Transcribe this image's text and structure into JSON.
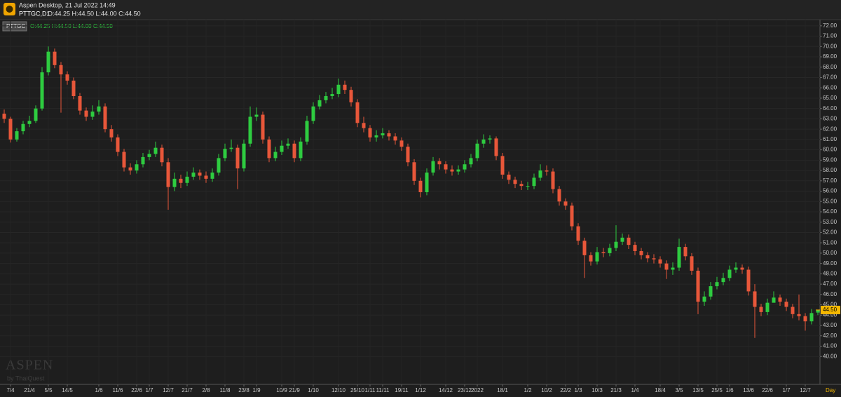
{
  "header": {
    "app": "Aspen Desktop, 21 Jul 2022 14:49",
    "symbol": "PTTGC,D1",
    "ohlc": "O:44.25 H:44.50 L:44.00 C:44.50"
  },
  "chart_data": {
    "type": "candlestick",
    "legend_symbol": "PTTGC",
    "legend_ohlc": "O:44.25 H:44.50 L:44.00 C:44.50",
    "watermark": "ASPEN",
    "watermark_sub": "by ThaiQuest",
    "period_label": "Day",
    "last_price": {
      "value": 44.5,
      "label": "44.50"
    },
    "up_color": "#2ecc40",
    "down_color": "#e8573a",
    "grid": true,
    "ylim": [
      37.3,
      72.6
    ],
    "yticks": [
      {
        "value": 40,
        "label": "40.00"
      },
      {
        "value": 41,
        "label": "41.00"
      },
      {
        "value": 42,
        "label": "42.00"
      },
      {
        "value": 43,
        "label": "43.00"
      },
      {
        "value": 44,
        "label": "44.00"
      },
      {
        "value": 45,
        "label": "45.00"
      },
      {
        "value": 46,
        "label": "46.00"
      },
      {
        "value": 47,
        "label": "47.00"
      },
      {
        "value": 48,
        "label": "48.00"
      },
      {
        "value": 49,
        "label": "49.00"
      },
      {
        "value": 50,
        "label": "50.00"
      },
      {
        "value": 51,
        "label": "51.00"
      },
      {
        "value": 52,
        "label": "52.00"
      },
      {
        "value": 53,
        "label": "53.00"
      },
      {
        "value": 54,
        "label": "54.00"
      },
      {
        "value": 55,
        "label": "55.00"
      },
      {
        "value": 56,
        "label": "56.00"
      },
      {
        "value": 57,
        "label": "57.00"
      },
      {
        "value": 58,
        "label": "58.00"
      },
      {
        "value": 59,
        "label": "59.00"
      },
      {
        "value": 60,
        "label": "60.00"
      },
      {
        "value": 61,
        "label": "61.00"
      },
      {
        "value": 62,
        "label": "62.00"
      },
      {
        "value": 63,
        "label": "63.00"
      },
      {
        "value": 64,
        "label": "64.00"
      },
      {
        "value": 65,
        "label": "65.00"
      },
      {
        "value": 66,
        "label": "66.00"
      },
      {
        "value": 67,
        "label": "67.00"
      },
      {
        "value": 68,
        "label": "68.00"
      },
      {
        "value": 69,
        "label": "69.00"
      },
      {
        "value": 70,
        "label": "70.00"
      },
      {
        "value": 71,
        "label": "71.00"
      },
      {
        "value": 72,
        "label": "72.00"
      }
    ],
    "categories": [
      null,
      "7/4",
      null,
      null,
      "21/4",
      null,
      null,
      "5/5",
      null,
      null,
      "14/5",
      null,
      null,
      null,
      null,
      "1/6",
      null,
      null,
      "11/6",
      null,
      null,
      "22/6",
      null,
      "1/7",
      null,
      null,
      "12/7",
      null,
      null,
      "21/7",
      null,
      null,
      "2/8",
      null,
      null,
      "11/8",
      null,
      null,
      "23/8",
      null,
      "1/9",
      null,
      null,
      null,
      "10/9",
      null,
      "21/9",
      null,
      null,
      "1/10",
      null,
      null,
      null,
      "12/10",
      null,
      null,
      "25/10",
      null,
      "1/11",
      null,
      "11/11",
      null,
      null,
      "19/11",
      null,
      null,
      "1/12",
      null,
      null,
      null,
      "14/12",
      null,
      null,
      "23/12",
      null,
      "2022",
      null,
      null,
      null,
      "18/1",
      null,
      null,
      null,
      "1/2",
      null,
      null,
      "10/2",
      null,
      null,
      "22/2",
      null,
      "1/3",
      null,
      null,
      "10/3",
      null,
      null,
      "21/3",
      null,
      null,
      "1/4",
      null,
      null,
      null,
      "18/4",
      null,
      null,
      "3/5",
      null,
      null,
      "13/5",
      null,
      null,
      "25/5",
      null,
      "1/6",
      null,
      null,
      "13/6",
      null,
      null,
      "22/6",
      null,
      null,
      "1/7",
      null,
      null,
      "12/7",
      null,
      null
    ],
    "open": [
      63.5,
      63,
      61,
      61.8,
      62.5,
      62.8,
      64,
      67.5,
      69.5,
      68.2,
      67.3,
      66.7,
      65.2,
      63.8,
      63.2,
      63.7,
      64.2,
      62,
      61.2,
      59.8,
      58.3,
      58,
      58.6,
      59.3,
      59.6,
      60.2,
      58.8,
      56.4,
      57.2,
      56.8,
      57.4,
      57.8,
      57.5,
      57.2,
      57.8,
      59.2,
      60.1,
      60.2,
      58.2,
      60.6,
      63.2,
      63.4,
      61,
      59.2,
      59.8,
      60.4,
      60.6,
      59.2,
      60.8,
      62.8,
      64.2,
      64.8,
      65.2,
      65.4,
      66.3,
      65.8,
      64.6,
      62.6,
      62.1,
      61.2,
      61.4,
      61.6,
      61.3,
      60.9,
      60.3,
      58.8,
      57,
      55.9,
      57.8,
      58.9,
      58.6,
      58.1,
      57.9,
      58.1,
      58.6,
      59.2,
      60.6,
      61,
      61.1,
      59.4,
      57.6,
      57.1,
      56.7,
      56.5,
      56.5,
      57.3,
      58,
      57.9,
      56.2,
      55,
      54.6,
      52.6,
      51.2,
      49.8,
      49.2,
      50.1,
      50,
      50.5,
      51.1,
      51.5,
      50.8,
      50.2,
      49.8,
      49.5,
      49.4,
      49,
      48.4,
      48.6,
      50.6,
      49.7,
      48.3,
      45.3,
      45.8,
      46.8,
      47.2,
      47.6,
      48.4,
      48.6,
      48.4,
      46.3,
      44.8,
      44.3,
      45.2,
      45.7,
      45.3,
      44.8,
      44.1,
      43.9,
      43.4,
      44.25
    ],
    "high": [
      63.9,
      63.2,
      62.1,
      62.8,
      63.3,
      64.3,
      68,
      70,
      69.8,
      68.5,
      67.6,
      67,
      65.5,
      64.1,
      64.3,
      64.8,
      64.5,
      62.4,
      61.5,
      60.1,
      58.7,
      59,
      59.7,
      60,
      60.8,
      60.5,
      59.2,
      57.8,
      57.6,
      57.9,
      58.3,
      58.1,
      57.9,
      58.2,
      59.6,
      60.6,
      61,
      60.5,
      61,
      64.2,
      64.1,
      63.7,
      61.3,
      60.3,
      60.9,
      61.1,
      60.9,
      61.2,
      63.3,
      64.6,
      65.3,
      65.6,
      66,
      66.9,
      66.7,
      66.1,
      64.9,
      63.2,
      62.4,
      61.9,
      62.1,
      61.9,
      61.6,
      61.2,
      60.6,
      59.1,
      57.3,
      58.2,
      59.3,
      59.2,
      58.9,
      58.5,
      58.5,
      59,
      59.6,
      61,
      61.5,
      61.4,
      61.3,
      59.7,
      57.9,
      57.4,
      57,
      56.9,
      57.7,
      58.6,
      58.5,
      58.2,
      56.5,
      55.3,
      54.9,
      52.9,
      51.5,
      50.1,
      50.6,
      50.5,
      50.9,
      52.7,
      51.9,
      51.8,
      51.1,
      50.5,
      50.1,
      49.9,
      49.7,
      49.3,
      49.1,
      51.4,
      50.9,
      50,
      48.6,
      46.3,
      47.2,
      47.7,
      48.1,
      48.8,
      49.1,
      48.9,
      48.7,
      47,
      45.1,
      45.6,
      46.3,
      46,
      45.6,
      45.1,
      46,
      44.2,
      44.6,
      44.5
    ],
    "low": [
      62.6,
      60.7,
      60.8,
      61.5,
      62.2,
      62.6,
      63.8,
      67.2,
      67.9,
      63.6,
      66.3,
      64.9,
      63.4,
      62.8,
      62.9,
      63.4,
      61.7,
      60.8,
      59.4,
      57.9,
      57.6,
      57.7,
      58.3,
      59,
      59.3,
      58.4,
      54.2,
      56,
      56.3,
      56.5,
      57.1,
      57.1,
      56.8,
      56.9,
      57.5,
      58.9,
      59.8,
      56.2,
      57.9,
      60.3,
      62.8,
      60.6,
      58.8,
      58.9,
      59.5,
      60.1,
      58.8,
      58.9,
      60.5,
      62.5,
      63.9,
      64.5,
      64.9,
      65.1,
      65.4,
      64.2,
      62.2,
      61.7,
      60.8,
      60.8,
      61.1,
      60.9,
      60.5,
      59.9,
      58.4,
      56.6,
      55.4,
      55.6,
      57.5,
      58.1,
      57.7,
      57.5,
      57.6,
      57.8,
      58.3,
      58.9,
      60.2,
      60.6,
      59,
      57.2,
      56.7,
      56.3,
      56.1,
      56.1,
      56.2,
      57,
      57.5,
      55.8,
      54.6,
      54.2,
      52.2,
      50.8,
      47.6,
      48.8,
      48.9,
      49.6,
      49.7,
      50.2,
      50.8,
      50.4,
      49.8,
      49.4,
      49.1,
      49,
      48.6,
      47.5,
      47.9,
      48.3,
      49.3,
      47.9,
      44.1,
      44.9,
      45.5,
      46.5,
      46.9,
      47.3,
      48.1,
      48,
      45.9,
      41.8,
      43.9,
      44,
      45.3,
      44.9,
      44.4,
      43.7,
      43.5,
      42.5,
      43.1,
      44
    ],
    "close": [
      63,
      61,
      61.8,
      62.5,
      62.8,
      64,
      67.5,
      69.5,
      68.2,
      67.3,
      66.7,
      65.2,
      63.8,
      63.2,
      63.7,
      64.2,
      62,
      61.2,
      59.8,
      58.3,
      58,
      58.6,
      59.3,
      59.6,
      60.2,
      58.8,
      56.4,
      57.2,
      56.8,
      57.4,
      57.8,
      57.5,
      57.2,
      57.8,
      59.2,
      60.1,
      60.2,
      58.2,
      60.6,
      63.2,
      63.4,
      61,
      59.2,
      59.8,
      60.4,
      60.6,
      59.2,
      60.8,
      62.8,
      64.2,
      64.8,
      65.2,
      65.4,
      66.3,
      65.8,
      64.6,
      62.6,
      62.1,
      61.2,
      61.4,
      61.6,
      61.3,
      60.9,
      60.3,
      58.8,
      57,
      55.9,
      57.8,
      58.9,
      58.6,
      58.1,
      57.9,
      58.1,
      58.6,
      59.2,
      60.6,
      61,
      61.1,
      59.4,
      57.6,
      57.1,
      56.7,
      56.5,
      56.5,
      57.3,
      58,
      57.9,
      56.2,
      55,
      54.6,
      52.6,
      51.2,
      49.8,
      49.2,
      50.1,
      50,
      50.5,
      51.1,
      51.5,
      50.8,
      50.2,
      49.8,
      49.5,
      49.4,
      49,
      48.4,
      48.6,
      50.6,
      49.7,
      48.3,
      45.3,
      45.8,
      46.8,
      47.2,
      47.6,
      48.4,
      48.6,
      48.4,
      46.3,
      44.8,
      44.3,
      45.2,
      45.7,
      45.3,
      44.8,
      44.1,
      43.9,
      43.4,
      44.2,
      44.5
    ]
  }
}
